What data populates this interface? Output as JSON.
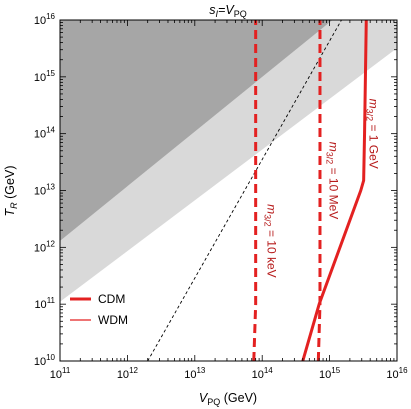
{
  "chart_data": {
    "type": "line",
    "title": "s_I=V_PQ",
    "title_parts": {
      "main": "s",
      "sub1": "I",
      "eq": "=V",
      "sub2": "PQ"
    },
    "xlabel": {
      "main": "V",
      "sub": "PQ",
      "unit": " (GeV)"
    },
    "ylabel": {
      "main": "T",
      "sub": "R",
      "unit": " (GeV)"
    },
    "xscale": "log",
    "yscale": "log",
    "xlim": [
      100000000000.0,
      1e+16
    ],
    "ylim": [
      10000000000.0,
      1e+16
    ],
    "xticks": [
      {
        "value": 100000000000.0,
        "base": "10",
        "exp": "11"
      },
      {
        "value": 1000000000000.0,
        "base": "10",
        "exp": "12"
      },
      {
        "value": 10000000000000.0,
        "base": "10",
        "exp": "13"
      },
      {
        "value": 100000000000000.0,
        "base": "10",
        "exp": "14"
      },
      {
        "value": 1000000000000000.0,
        "base": "10",
        "exp": "15"
      },
      {
        "value": 1e+16,
        "base": "10",
        "exp": "16"
      }
    ],
    "yticks": [
      {
        "value": 10000000000.0,
        "base": "10",
        "exp": "10"
      },
      {
        "value": 100000000000.0,
        "base": "10",
        "exp": "11"
      },
      {
        "value": 1000000000000.0,
        "base": "10",
        "exp": "12"
      },
      {
        "value": 10000000000000.0,
        "base": "10",
        "exp": "13"
      },
      {
        "value": 100000000000000.0,
        "base": "10",
        "exp": "14"
      },
      {
        "value": 1000000000000000.0,
        "base": "10",
        "exp": "15"
      },
      {
        "value": 1e+16,
        "base": "10",
        "exp": "16"
      }
    ],
    "regions": [
      {
        "name": "light-gray-band",
        "color": "#d9d9d9",
        "polygon": [
          [
            100000000000.0,
            110000000000.0
          ],
          [
            100000000000.0,
            1e+16
          ],
          [
            3200000000000000.0,
            1e+16
          ],
          [
            1e+16,
            1e+16
          ],
          [
            1e+16,
            3200000000000000.0
          ]
        ]
      },
      {
        "name": "dark-gray-region",
        "color": "#a6a6a6",
        "polygon": [
          [
            100000000000.0,
            1300000000000.0
          ],
          [
            100000000000.0,
            1e+16
          ],
          [
            1100000000000000.0,
            1e+16
          ]
        ]
      }
    ],
    "series": [
      {
        "style": "thin-dashed-black",
        "color": "#000000",
        "x": [
          2000000000000.0,
          1500000000000000.0
        ],
        "y": [
          10000000000.0,
          1e+16
        ]
      },
      {
        "style": "thick-dashed-red",
        "color": "#e32121",
        "x": [
          75000000000000.0,
          80000000000000.0,
          80000000000000.0
        ],
        "y": [
          10000000000.0,
          100000000000.0,
          1e+16
        ]
      },
      {
        "style": "thick-dashed-red",
        "color": "#e32121",
        "x": [
          680000000000000.0,
          720000000000000.0,
          720000000000000.0
        ],
        "y": [
          10000000000.0,
          100000000000.0,
          1e+16
        ]
      },
      {
        "style": "thick-solid-red",
        "color": "#e32121",
        "x": [
          400000000000000.0,
          700000000000000.0,
          2900000000000000.0,
          3200000000000000.0,
          3300000000000000.0,
          3400000000000000.0,
          3500000000000000.0
        ],
        "y": [
          10000000000.0,
          100000000000.0,
          10000000000000.0,
          15000000000000.0,
          100000000000000.0,
          1000000000000000.0,
          1e+16
        ]
      }
    ],
    "annotations": [
      {
        "name": "m32-1gev",
        "x": 3900000000000000.0,
        "y": 100000000000000.0,
        "m": "m",
        "sub": "3/2",
        "rest": " = 1 GeV"
      },
      {
        "name": "m32-10mev",
        "x": 1000000000000000.0,
        "y": 15000000000000.0,
        "m": "m",
        "sub": "3/2",
        "rest": " = 10 MeV"
      },
      {
        "name": "m32-10kev",
        "x": 120000000000000.0,
        "y": 1300000000000.0,
        "m": "m",
        "sub": "3/2",
        "rest": " = 10 keV"
      }
    ],
    "legend": {
      "position": "bottom-left",
      "entries": [
        {
          "label": "CDM",
          "color": "#e32121",
          "style": "thick"
        },
        {
          "label": "WDM",
          "color": "#e32121",
          "style": "thin"
        }
      ]
    },
    "grid": false
  }
}
